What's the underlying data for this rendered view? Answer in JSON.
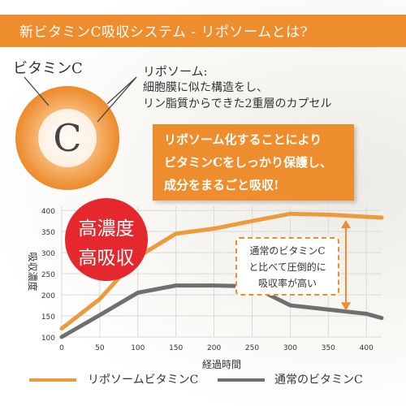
{
  "header": {
    "title": "新ビタミンC吸収システム - リポソームとは?"
  },
  "vitamin_c": {
    "label": "ビタミンC",
    "letter": "C"
  },
  "liposome": {
    "title": "リポソーム:",
    "line1": "細胞膜に似た構造をし、",
    "line2": "リン脂質からできた2重層のカプセル"
  },
  "callout": {
    "line1": "リポソーム化することにより",
    "line2": "ビタミンCをしっかり保護し、",
    "line3": "成分をまるごと吸収!"
  },
  "badge": {
    "line1": "高濃度",
    "line2": "高吸収"
  },
  "comparison": {
    "line1": "通常のビタミンC",
    "line2": "と比べて圧倒的に",
    "line3": "吸収率が高い"
  },
  "colors": {
    "accent": "#ee8d2e",
    "liposome_series": "#ee9a3c",
    "normal_series": "#6f6f6f",
    "badge": "#e4282e"
  },
  "chart_data": {
    "type": "line",
    "xlabel": "経過時間",
    "ylabel": "吸収濃度",
    "x": [
      0,
      50,
      100,
      150,
      200,
      250,
      300,
      350,
      400,
      420
    ],
    "xticks": [
      "0",
      "50",
      "100",
      "150",
      "200",
      "250",
      "300",
      "350",
      "400"
    ],
    "yticks": [
      "100",
      "150",
      "200",
      "250",
      "300",
      "350",
      "400"
    ],
    "xlim": [
      0,
      420
    ],
    "ylim": [
      100,
      410
    ],
    "grid": true,
    "legend_position": "bottom",
    "series": [
      {
        "name": "リポソームビタミンC",
        "values": [
          120,
          190,
          290,
          345,
          357,
          375,
          392,
          390,
          385,
          383
        ]
      },
      {
        "name": "通常のビタミンC",
        "values": [
          100,
          152,
          205,
          222,
          222,
          220,
          175,
          165,
          155,
          145
        ]
      }
    ]
  }
}
